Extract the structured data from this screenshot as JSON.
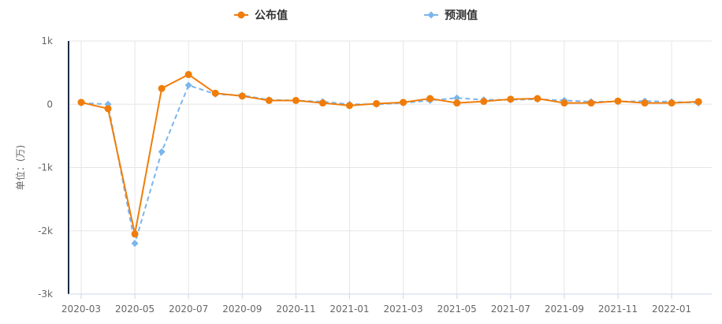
{
  "chart_data": {
    "type": "line",
    "title": "",
    "xlabel": "",
    "ylabel": "单位：(万)",
    "x": [
      "2020-03",
      "2020-04",
      "2020-05",
      "2020-06",
      "2020-07",
      "2020-08",
      "2020-09",
      "2020-10",
      "2020-11",
      "2020-12",
      "2021-01",
      "2021-02",
      "2021-03",
      "2021-04",
      "2021-05",
      "2021-06",
      "2021-07",
      "2021-08",
      "2021-09",
      "2021-10",
      "2021-11",
      "2021-12",
      "2022-01",
      "2022-02"
    ],
    "x_tick_labels": [
      "2020-03",
      "2020-05",
      "2020-07",
      "2020-09",
      "2020-11",
      "2021-01",
      "2021-03",
      "2021-05",
      "2021-07",
      "2021-09",
      "2021-11",
      "2022-01"
    ],
    "y_ticks": [
      1000,
      0,
      -1000,
      -2000,
      -3000
    ],
    "y_tick_labels": [
      "1k",
      "0",
      "-1k",
      "-2k",
      "-3k"
    ],
    "ylim": [
      -3000,
      1000
    ],
    "grid": true,
    "legend_position": "top",
    "series": [
      {
        "name": "公布值",
        "style": "solid",
        "marker": "circle",
        "color": "#f07d0a",
        "values": [
          30,
          -70,
          -2050,
          250,
          470,
          175,
          130,
          60,
          60,
          20,
          -20,
          10,
          30,
          90,
          20,
          45,
          80,
          90,
          20,
          20,
          50,
          20,
          20,
          40
        ]
      },
      {
        "name": "预测值",
        "style": "dashed",
        "marker": "diamond",
        "color": "#7cb5ec",
        "values": [
          20,
          0,
          -2200,
          -750,
          300,
          160,
          140,
          70,
          60,
          40,
          0,
          0,
          20,
          60,
          100,
          70,
          70,
          80,
          60,
          40,
          40,
          50,
          40,
          20
        ]
      }
    ]
  }
}
